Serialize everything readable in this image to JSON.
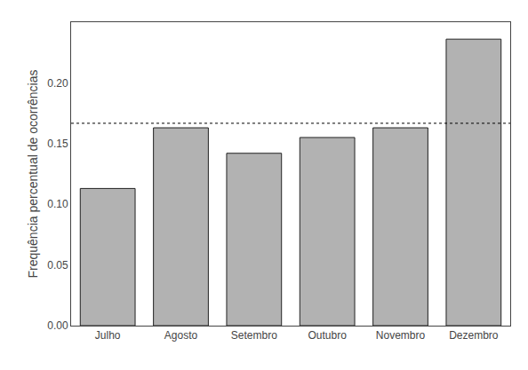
{
  "chart_data": {
    "type": "bar",
    "categories": [
      "Julho",
      "Agosto",
      "Setembro",
      "Outubro",
      "Novembro",
      "Dezembro"
    ],
    "values": [
      0.113,
      0.163,
      0.142,
      0.155,
      0.163,
      0.236
    ],
    "color": "#b2b2b2",
    "edge_color": "#222222",
    "ylabel": "Frequência percentual de ocorrências",
    "ylim": [
      0,
      0.25
    ],
    "yticks": [
      {
        "value": 0,
        "label": "0.00"
      },
      {
        "value": 0.05,
        "label": "0.05"
      },
      {
        "value": 0.1,
        "label": "0.10"
      },
      {
        "value": 0.15,
        "label": "0.15"
      },
      {
        "value": 0.2,
        "label": "0.20"
      }
    ],
    "hline": {
      "y": 0.1667,
      "color": "#000000",
      "line_style": "dotted"
    },
    "grid": false
  }
}
